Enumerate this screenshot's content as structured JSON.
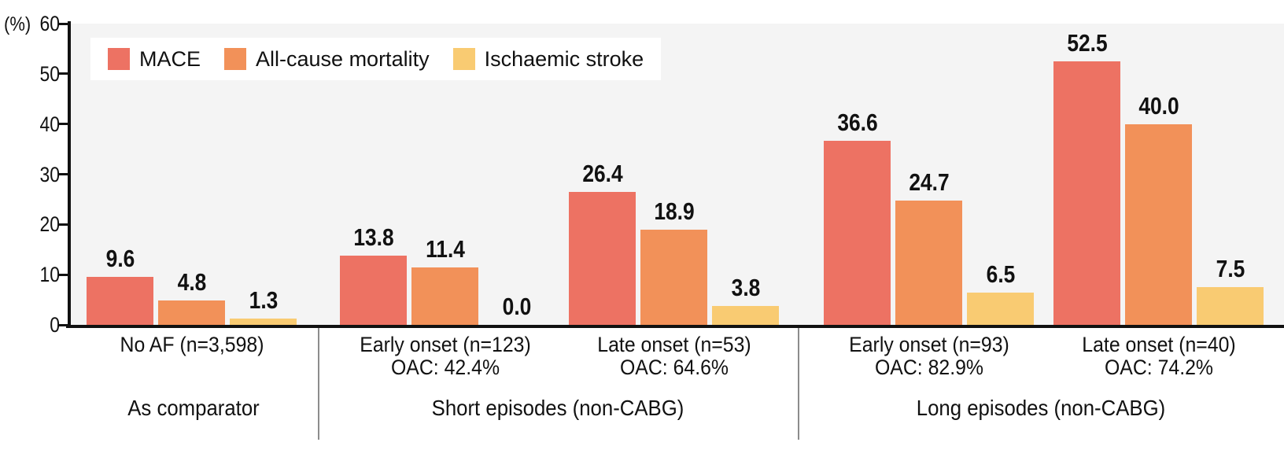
{
  "chart_data": {
    "type": "bar",
    "title": "",
    "ylabel": "(%)",
    "ylim": [
      0,
      60
    ],
    "yticks": [
      0,
      10,
      20,
      30,
      40,
      50,
      60
    ],
    "grid": false,
    "legend_position": "top-left",
    "value_label_format": "one_decimal",
    "series": [
      {
        "name": "MACE",
        "color": "#ED7263"
      },
      {
        "name": "All-cause mortality",
        "color": "#F29159"
      },
      {
        "name": "Ischaemic stroke",
        "color": "#F9CB72"
      }
    ],
    "groups": [
      {
        "label": "No AF (n=3,598)",
        "sublabel": "",
        "section": "As comparator",
        "values": [
          9.6,
          4.8,
          1.3
        ]
      },
      {
        "label": "Early onset (n=123)",
        "sublabel": "OAC: 42.4%",
        "section": "Short episodes (non-CABG)",
        "values": [
          13.8,
          11.4,
          0.0
        ]
      },
      {
        "label": "Late onset (n=53)",
        "sublabel": "OAC: 64.6%",
        "section": "Short episodes (non-CABG)",
        "values": [
          26.4,
          18.9,
          3.8
        ]
      },
      {
        "label": "Early onset (n=93)",
        "sublabel": "OAC: 82.9%",
        "section": "Long episodes (non-CABG)",
        "values": [
          36.6,
          24.7,
          6.5
        ]
      },
      {
        "label": "Late onset (n=40)",
        "sublabel": "OAC: 74.2%",
        "section": "Long episodes (non-CABG)",
        "values": [
          52.5,
          40.0,
          7.5
        ]
      }
    ],
    "sections": [
      {
        "label": "As comparator"
      },
      {
        "label": "Short episodes (non-CABG)"
      },
      {
        "label": "Long episodes (non-CABG)"
      }
    ]
  },
  "colors": {
    "plot_background": "#F4F4F4",
    "legend_background": "#FFFFFF",
    "axis": "#111111",
    "divider": "#8C8C8C",
    "text": "#111111"
  }
}
